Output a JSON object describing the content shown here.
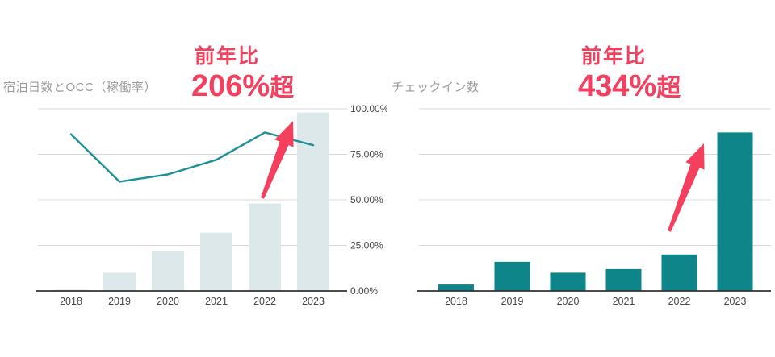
{
  "colors": {
    "background": "#ffffff",
    "accent_red": "#f4405e",
    "bar_light": "#dce8ea",
    "bar_teal": "#0d8589",
    "line_teal": "#1d8f96",
    "title_text": "#9b9b9b",
    "axis_text": "#474747",
    "gridline": "#d8d8d8",
    "axis_line": "#333333"
  },
  "chart_data": [
    {
      "id": "occupancy-chart",
      "type": "combo_bar_line",
      "title": "宿泊日数とOCC（稼働率）",
      "categories": [
        "2018",
        "2019",
        "2020",
        "2021",
        "2022",
        "2023"
      ],
      "series": [
        {
          "name": "宿泊日数",
          "type": "bar",
          "color": "#dce8ea",
          "values": [
            0.7,
            10,
            22,
            32,
            48,
            98
          ]
        },
        {
          "name": "OCC（稼働率）",
          "type": "line",
          "color": "#1d8f96",
          "values": [
            86,
            60,
            64,
            72,
            87,
            80
          ]
        }
      ],
      "y_axis": {
        "side": "right",
        "range": [
          0,
          100
        ],
        "grid": true,
        "labels_visible": true,
        "ticks": [
          "100.00%",
          "75.00%",
          "50.00%",
          "25.00%",
          "0.00%"
        ]
      },
      "annotation": {
        "prefix": "前年比",
        "value": "206%",
        "suffix": "超",
        "arrow": true
      }
    },
    {
      "id": "checkins-chart",
      "type": "bar",
      "title": "チェックイン数",
      "categories": [
        "2018",
        "2019",
        "2020",
        "2021",
        "2022",
        "2023"
      ],
      "series": [
        {
          "name": "チェックイン数",
          "type": "bar",
          "color": "#0d8589",
          "values": [
            3.5,
            16,
            10,
            12,
            20,
            87
          ]
        }
      ],
      "y_axis": {
        "side": "none",
        "range": [
          0,
          100
        ],
        "grid": true,
        "labels_visible": false,
        "ticks": []
      },
      "annotation": {
        "prefix": "前年比",
        "value": "434%",
        "suffix": "超",
        "arrow": true
      }
    }
  ]
}
